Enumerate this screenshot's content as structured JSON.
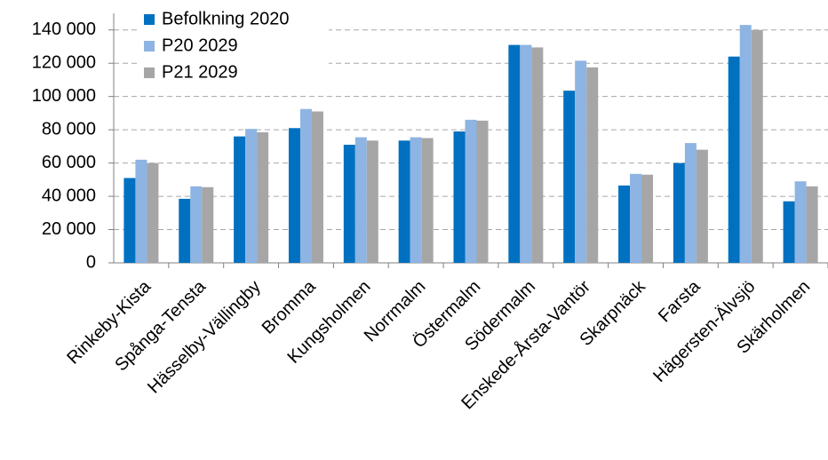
{
  "chart_data": {
    "type": "bar",
    "categories": [
      "Rinkeby-Kista",
      "Spånga-Tensta",
      "Hässelby-Vällingby",
      "Bromma",
      "Kungsholmen",
      "Norrmalm",
      "Östermalm",
      "Södermalm",
      "Enskede-Årsta-Vantör",
      "Skarpnäck",
      "Farsta",
      "Hägersten-Älvsjö",
      "Skärholmen"
    ],
    "series": [
      {
        "name": "Befolkning 2020",
        "color": "#0070c0",
        "values": [
          51000,
          38500,
          76000,
          81000,
          71000,
          73500,
          79000,
          131000,
          103500,
          46500,
          60000,
          124000,
          37000
        ]
      },
      {
        "name": "P20 2029",
        "color": "#8db4e2",
        "values": [
          62000,
          46000,
          80500,
          92500,
          75500,
          75500,
          86000,
          131000,
          121500,
          53500,
          72000,
          143000,
          49000
        ]
      },
      {
        "name": "P21 2029",
        "color": "#a6a6a6",
        "values": [
          60000,
          45500,
          78500,
          91000,
          73500,
          75000,
          85500,
          129500,
          117500,
          53000,
          68000,
          140000,
          46000
        ]
      }
    ],
    "ylim": [
      0,
      150000
    ],
    "yticks": [
      0,
      {
        "value": 20000,
        "label": "20 000"
      },
      {
        "value": 40000,
        "label": "40 000"
      },
      {
        "value": 60000,
        "label": "60 000"
      },
      {
        "value": 80000,
        "label": "80 000"
      },
      {
        "value": 100000,
        "label": "100 000"
      },
      {
        "value": 120000,
        "label": "120 000"
      },
      {
        "value": 140000,
        "label": "140 000"
      }
    ],
    "grid": true,
    "legend": "top-left"
  }
}
